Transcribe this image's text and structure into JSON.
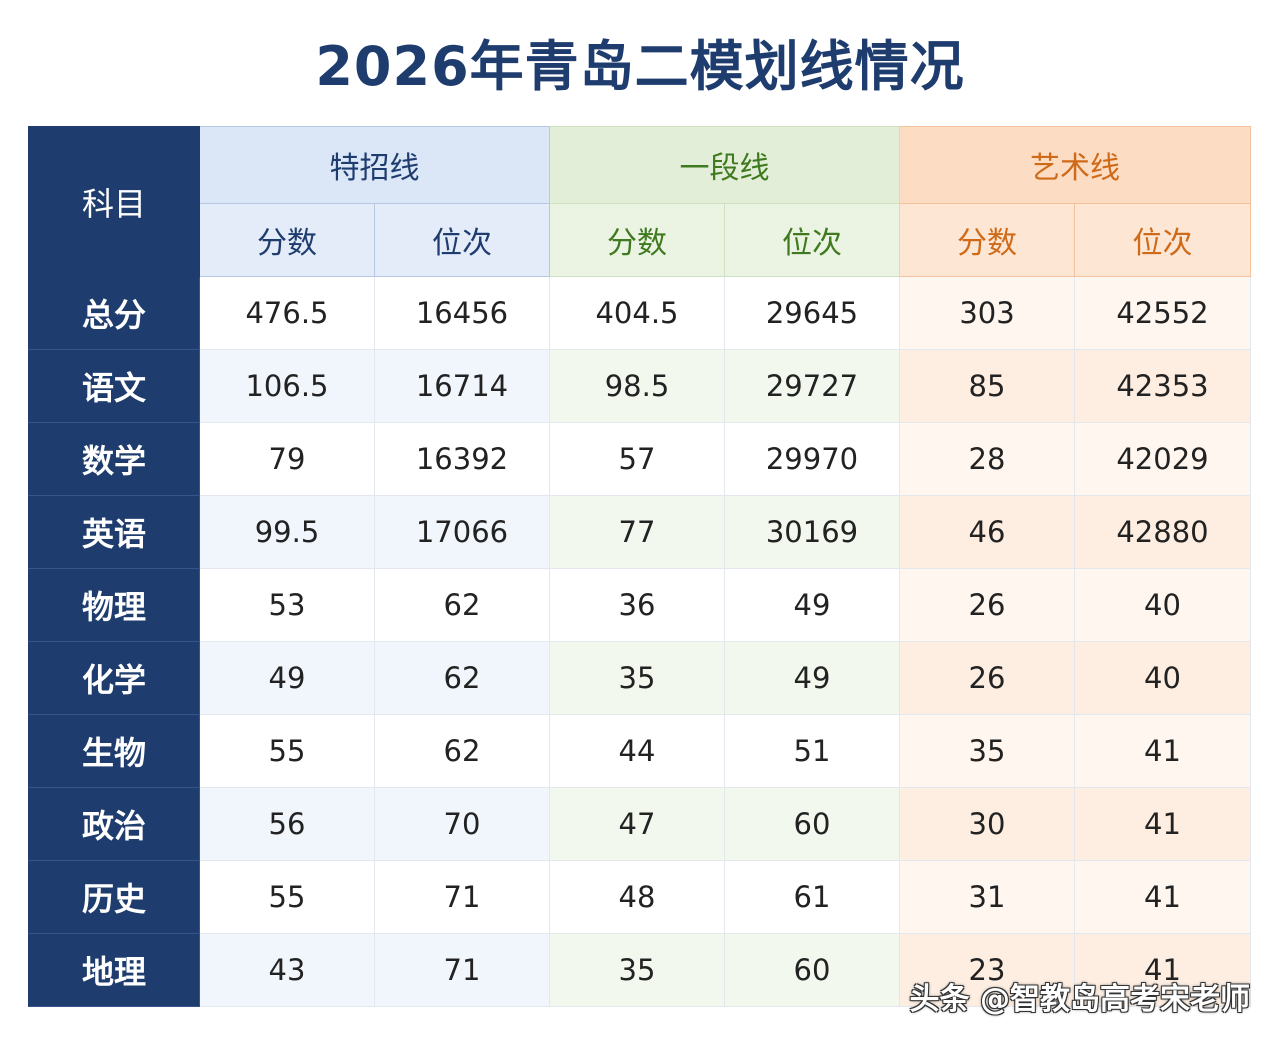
{
  "title": "2026年青岛二模划线情况",
  "header": {
    "subject": "科目",
    "groups": [
      "特招线",
      "一段线",
      "艺术线"
    ],
    "sub": [
      "分数",
      "位次"
    ]
  },
  "colors": {
    "navy": "#1e3d6e",
    "blue_group": "#dbe6f7",
    "green_group": "#e3eed9",
    "green_text": "#3f7a1f",
    "orange_group": "#fcdcc3",
    "orange_text": "#cf6a19"
  },
  "rows": [
    {
      "subject": "总分",
      "values": [
        "476.5",
        "16456",
        "404.5",
        "29645",
        "303",
        "42552"
      ]
    },
    {
      "subject": "语文",
      "values": [
        "106.5",
        "16714",
        "98.5",
        "29727",
        "85",
        "42353"
      ]
    },
    {
      "subject": "数学",
      "values": [
        "79",
        "16392",
        "57",
        "29970",
        "28",
        "42029"
      ]
    },
    {
      "subject": "英语",
      "values": [
        "99.5",
        "17066",
        "77",
        "30169",
        "46",
        "42880"
      ]
    },
    {
      "subject": "物理",
      "values": [
        "53",
        "62",
        "36",
        "49",
        "26",
        "40"
      ]
    },
    {
      "subject": "化学",
      "values": [
        "49",
        "62",
        "35",
        "49",
        "26",
        "40"
      ]
    },
    {
      "subject": "生物",
      "values": [
        "55",
        "62",
        "44",
        "51",
        "35",
        "41"
      ]
    },
    {
      "subject": "政治",
      "values": [
        "56",
        "70",
        "47",
        "60",
        "30",
        "41"
      ]
    },
    {
      "subject": "历史",
      "values": [
        "55",
        "71",
        "48",
        "61",
        "31",
        "41"
      ]
    },
    {
      "subject": "地理",
      "values": [
        "43",
        "71",
        "35",
        "60",
        "23",
        "41"
      ]
    }
  ],
  "watermark": "头条 @智教岛高考宋老师"
}
